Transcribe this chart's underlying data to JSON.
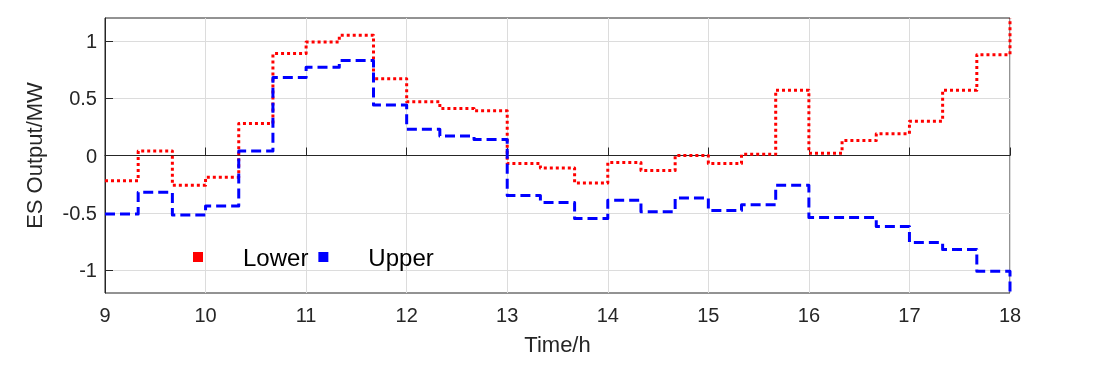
{
  "chart_data": {
    "type": "step",
    "xlabel": "Time/h",
    "ylabel": "ES Output/MW",
    "x": [
      9,
      9.33,
      9.67,
      10,
      10.33,
      10.67,
      11,
      11.33,
      11.67,
      12,
      12.33,
      12.67,
      13,
      13.33,
      13.67,
      14,
      14.33,
      14.67,
      15,
      15.33,
      15.67,
      16,
      16.33,
      16.67,
      17,
      17.33,
      17.67,
      18
    ],
    "series": [
      {
        "name": "Lower",
        "color": "#ff0000",
        "line_style": "dotted",
        "values": [
          -0.22,
          0.04,
          -0.26,
          -0.19,
          0.28,
          0.89,
          0.99,
          1.05,
          0.67,
          0.47,
          0.41,
          0.39,
          -0.07,
          -0.11,
          -0.24,
          -0.06,
          -0.13,
          0.0,
          -0.07,
          0.01,
          0.57,
          0.02,
          0.13,
          0.19,
          0.3,
          0.57,
          0.88,
          1.2
        ]
      },
      {
        "name": "Upper",
        "color": "#0000ff",
        "line_style": "dashed",
        "values": [
          -0.51,
          -0.32,
          -0.52,
          -0.44,
          0.04,
          0.68,
          0.77,
          0.83,
          0.44,
          0.23,
          0.17,
          0.14,
          -0.35,
          -0.41,
          -0.55,
          -0.39,
          -0.49,
          -0.37,
          -0.48,
          -0.43,
          -0.26,
          -0.54,
          -0.54,
          -0.62,
          -0.76,
          -0.82,
          -1.01,
          -1.2
        ]
      }
    ],
    "xlim": [
      9,
      18
    ],
    "xticks": [
      9,
      10,
      11,
      12,
      13,
      14,
      15,
      16,
      17,
      18
    ],
    "ylim": [
      -1.2,
      1.2
    ],
    "yticks": [
      -1,
      -0.5,
      0,
      0.5,
      1
    ],
    "grid": true,
    "legend": "bottom left",
    "marker": "none"
  }
}
